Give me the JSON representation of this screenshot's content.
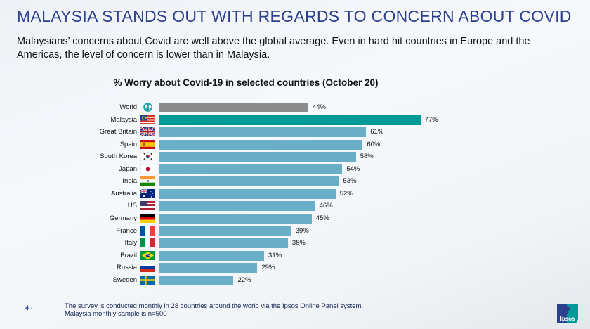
{
  "header": {
    "title": "MALAYSIA STANDS OUT WITH REGARDS TO CONCERN ABOUT COVID",
    "subtitle": "Malaysians’ concerns about Covid are well above the global average. Even in hard hit countries in Europe and the Americas, the level of concern is lower than in Malaysia."
  },
  "chart_data": {
    "type": "bar",
    "orientation": "horizontal",
    "title": "% Worry about Covid-19 in selected countries (October 20)",
    "xlabel": "",
    "ylabel": "",
    "grid": false,
    "categories": [
      "World",
      "Malaysia",
      "Great Britain",
      "Spain",
      "South Korea",
      "Japan",
      "India",
      "Australia",
      "US",
      "Germany",
      "France",
      "Italy",
      "Brazil",
      "Russia",
      "Sweden"
    ],
    "values": [
      44,
      77,
      61,
      60,
      58,
      54,
      53,
      52,
      46,
      45,
      39,
      38,
      31,
      29,
      22
    ],
    "value_labels": [
      "44%",
      "77%",
      "61%",
      "60%",
      "58%",
      "54%",
      "53%",
      "52%",
      "46%",
      "45%",
      "39%",
      "38%",
      "31%",
      "29%",
      "22%"
    ],
    "icons": [
      "globe-icon",
      "malaysia-flag-icon",
      "uk-flag-icon",
      "spain-flag-icon",
      "south-korea-flag-icon",
      "japan-flag-icon",
      "india-flag-icon",
      "australia-flag-icon",
      "us-flag-icon",
      "germany-flag-icon",
      "france-flag-icon",
      "italy-flag-icon",
      "brazil-flag-icon",
      "russia-flag-icon",
      "sweden-flag-icon"
    ],
    "xlim": [
      0,
      100
    ],
    "colors": {
      "world": "#8c8c8c",
      "highlight": "#009a96",
      "default": "#6aaec8"
    },
    "highlight_category": "Malaysia"
  },
  "footer": {
    "page_number": "4",
    "page_sep": "-",
    "note_line1": "The survey is conducted monthly in 28 countries around the world via the Ipsos Online Panel system.",
    "note_line2": "Malaysia monthly sample is n=500",
    "logo_text": "Ipsos"
  }
}
